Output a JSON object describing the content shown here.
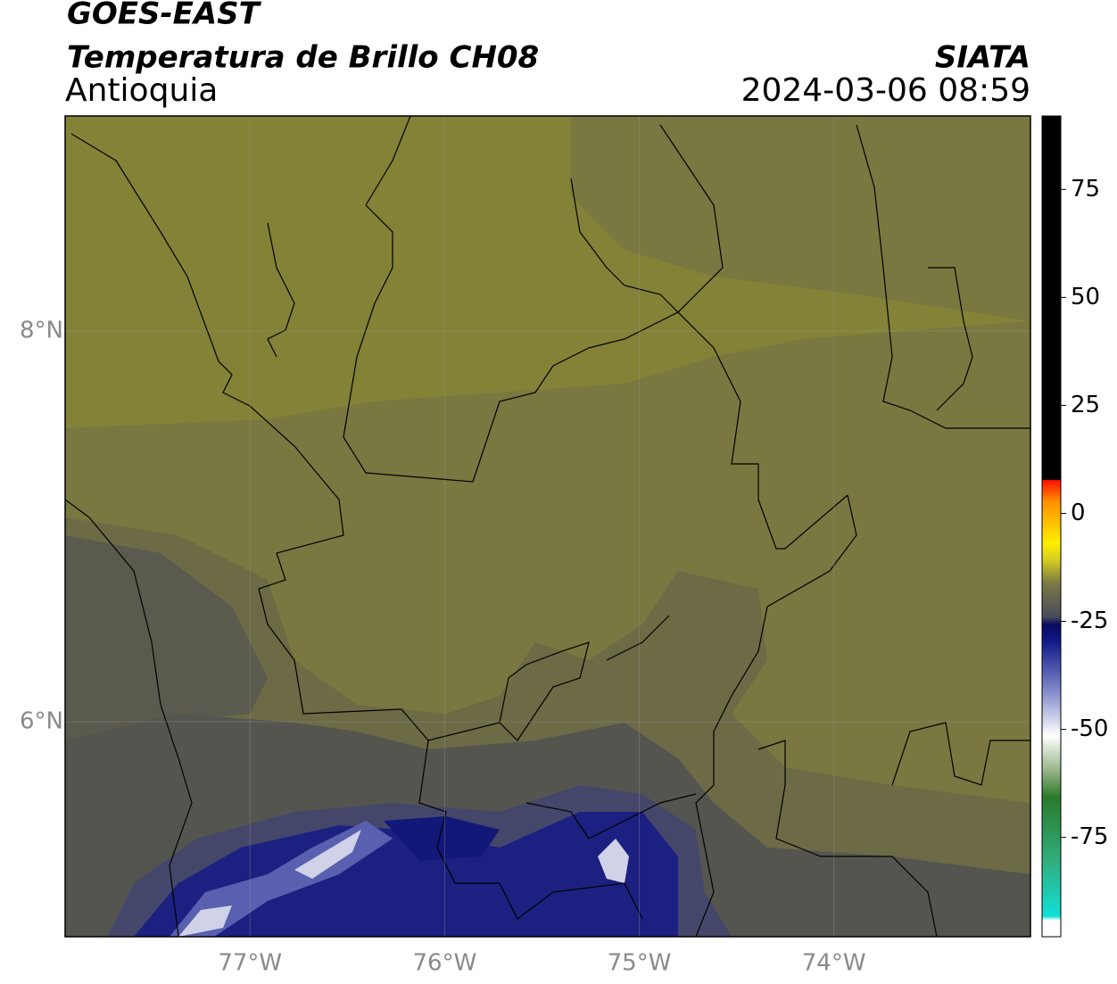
{
  "header": {
    "title": "GOES-EAST",
    "subtitle": "Temperatura de Brillo CH08",
    "region": "Antioquia",
    "source": "SIATA",
    "timestamp": "2024-03-06 08:59"
  },
  "map": {
    "xlim": [
      -77.95,
      -72.99
    ],
    "ylim": [
      4.9,
      9.1
    ],
    "xticks": [
      {
        "value": -77,
        "label": "77°W"
      },
      {
        "value": -76,
        "label": "76°W"
      },
      {
        "value": -75,
        "label": "75°W"
      },
      {
        "value": -74,
        "label": "74°W"
      }
    ],
    "yticks": [
      {
        "value": 8,
        "label": "8°N"
      },
      {
        "value": 6,
        "label": "6°N"
      }
    ],
    "grid": true
  },
  "colorbar": {
    "lim": [
      -98,
      92
    ],
    "ticks": [
      75,
      50,
      25,
      0,
      -25,
      -50,
      -75
    ]
  }
}
